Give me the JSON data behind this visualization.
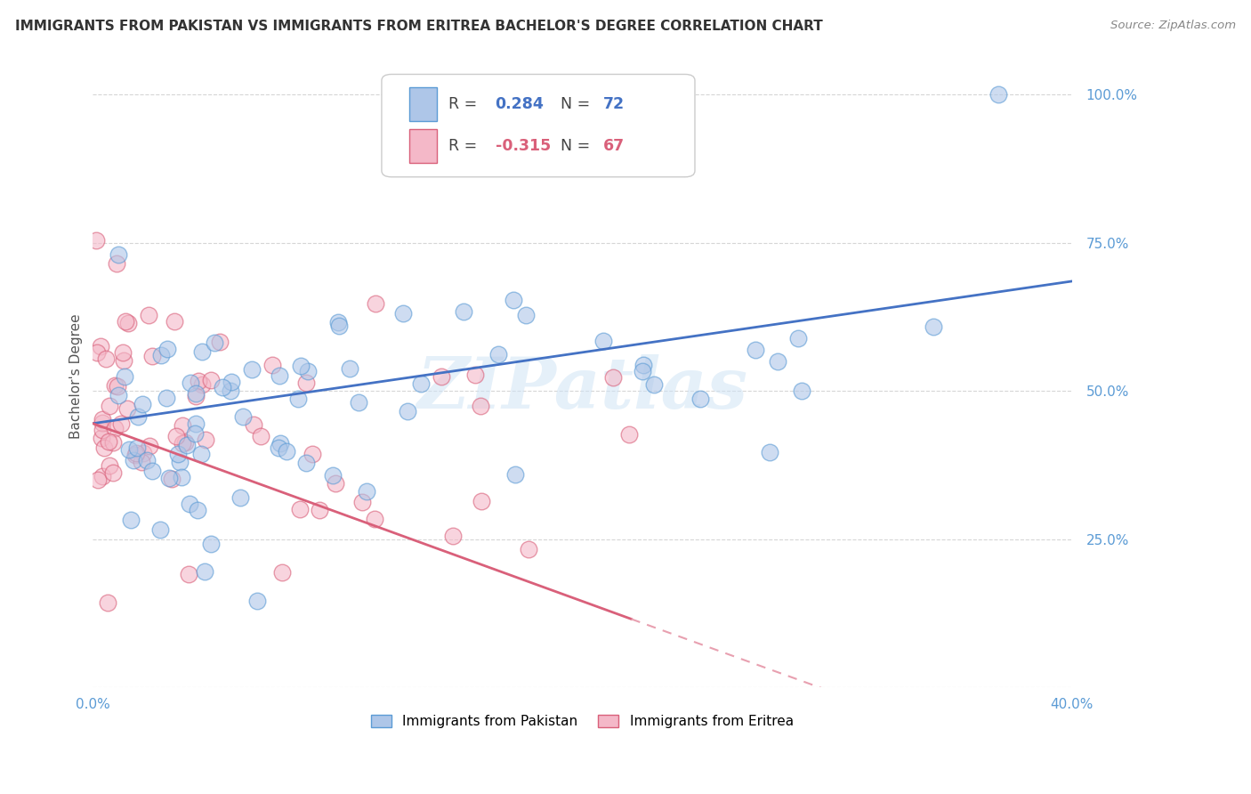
{
  "title": "IMMIGRANTS FROM PAKISTAN VS IMMIGRANTS FROM ERITREA BACHELOR'S DEGREE CORRELATION CHART",
  "source": "Source: ZipAtlas.com",
  "ylabel": "Bachelor's Degree",
  "xlim": [
    0.0,
    0.4
  ],
  "ylim": [
    0.0,
    1.05
  ],
  "pakistan_color": "#aec6e8",
  "eritrea_color": "#f4b8c8",
  "pakistan_edge_color": "#5b9bd5",
  "eritrea_edge_color": "#d9607a",
  "line_pakistan_color": "#4472c4",
  "line_eritrea_color": "#d9607a",
  "line_eritrea_dashed_color": "#e8a0b0",
  "pakistan_R": 0.284,
  "pakistan_N": 72,
  "eritrea_R": -0.315,
  "eritrea_N": 67,
  "watermark": "ZIPatlas",
  "legend_label_pakistan": "Immigrants from Pakistan",
  "legend_label_eritrea": "Immigrants from Eritrea",
  "pak_line_x0": 0.0,
  "pak_line_y0": 0.445,
  "pak_line_x1": 0.4,
  "pak_line_y1": 0.685,
  "eri_line_x0": 0.0,
  "eri_line_y0": 0.445,
  "eri_line_x1": 0.22,
  "eri_line_y1": 0.115,
  "eri_line_solid_end": 0.22,
  "eri_line_dashed_end": 0.4
}
